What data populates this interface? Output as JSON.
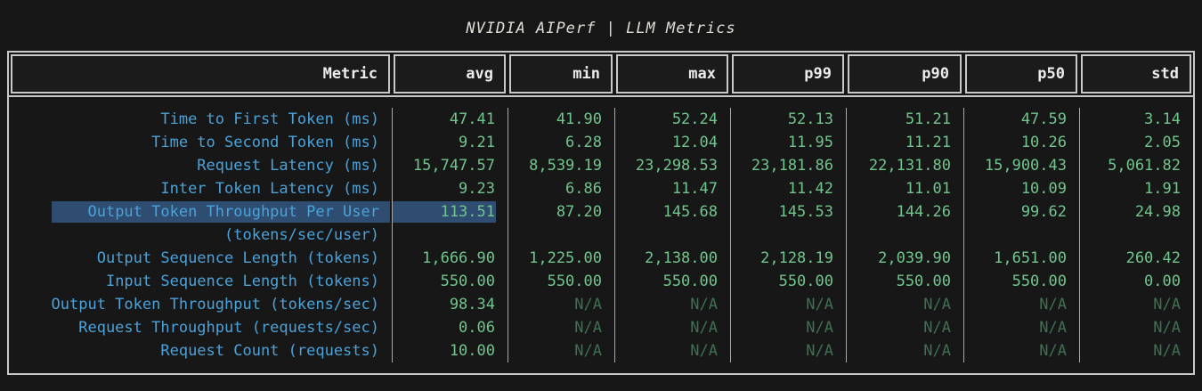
{
  "title": "NVIDIA AIPerf | LLM Metrics",
  "columns": [
    "Metric",
    "avg",
    "min",
    "max",
    "p99",
    "p90",
    "p50",
    "std"
  ],
  "rows": [
    {
      "metric": "Time to First Token (ms)",
      "values": [
        "47.41",
        "41.90",
        "52.24",
        "52.13",
        "51.21",
        "47.59",
        "3.14"
      ]
    },
    {
      "metric": "Time to Second Token (ms)",
      "values": [
        "9.21",
        "6.28",
        "12.04",
        "11.95",
        "11.21",
        "10.26",
        "2.05"
      ]
    },
    {
      "metric": "Request Latency (ms)",
      "values": [
        "15,747.57",
        "8,539.19",
        "23,298.53",
        "23,181.86",
        "22,131.80",
        "15,900.43",
        "5,061.82"
      ]
    },
    {
      "metric": "Inter Token Latency (ms)",
      "values": [
        "9.23",
        "6.86",
        "11.47",
        "11.42",
        "11.01",
        "10.09",
        "1.91"
      ]
    },
    {
      "metric": "Output Token Throughput Per User",
      "metric_line2": "(tokens/sec/user)",
      "highlighted": true,
      "values": [
        "113.51",
        "87.20",
        "145.68",
        "145.53",
        "144.26",
        "99.62",
        "24.98"
      ]
    },
    {
      "metric": "Output Sequence Length (tokens)",
      "values": [
        "1,666.90",
        "1,225.00",
        "2,138.00",
        "2,128.19",
        "2,039.90",
        "1,651.00",
        "260.42"
      ]
    },
    {
      "metric": "Input Sequence Length (tokens)",
      "values": [
        "550.00",
        "550.00",
        "550.00",
        "550.00",
        "550.00",
        "550.00",
        "0.00"
      ]
    },
    {
      "metric": "Output Token Throughput (tokens/sec)",
      "values": [
        "98.34",
        "N/A",
        "N/A",
        "N/A",
        "N/A",
        "N/A",
        "N/A"
      ]
    },
    {
      "metric": "Request Throughput (requests/sec)",
      "values": [
        "0.06",
        "N/A",
        "N/A",
        "N/A",
        "N/A",
        "N/A",
        "N/A"
      ]
    },
    {
      "metric": "Request Count (requests)",
      "values": [
        "10.00",
        "N/A",
        "N/A",
        "N/A",
        "N/A",
        "N/A",
        "N/A"
      ]
    }
  ],
  "colors": {
    "background": "#171717",
    "border": "#c9c9c9",
    "metric_text": "#4aa2d9",
    "value_text": "#70c58c",
    "na_text": "#3e7051",
    "highlight": "#2e4d71",
    "title_text": "#e0ddd5"
  }
}
